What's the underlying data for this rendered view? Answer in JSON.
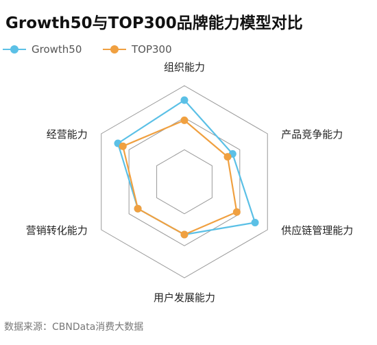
{
  "title": "Growth50与TOP300品牌能力模型对比",
  "source": "数据来源：CBNData消费大数据",
  "chart_data": {
    "type": "radar",
    "axes": [
      "组织能力",
      "产品竞争能力",
      "供应链管理能力",
      "用户发展能力",
      "营销转化能力",
      "经营能力"
    ],
    "range": [
      0,
      1
    ],
    "series": [
      {
        "name": "Growth50",
        "color": "#5bc0e6",
        "values": [
          0.85,
          0.58,
          0.85,
          0.55,
          0.56,
          0.8
        ]
      },
      {
        "name": "TOP300",
        "color": "#f0a040",
        "values": [
          0.64,
          0.52,
          0.63,
          0.55,
          0.56,
          0.74
        ]
      }
    ]
  }
}
